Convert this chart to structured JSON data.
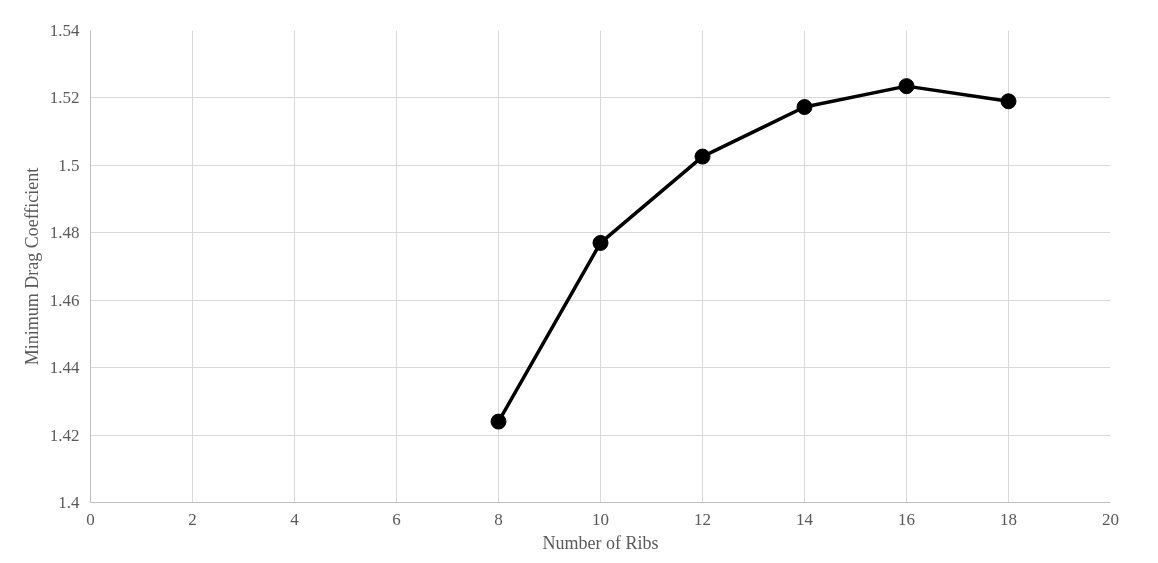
{
  "chart_data": {
    "type": "line",
    "xlabel": "Number of Ribs",
    "ylabel": "Minimum Drag Coefficient",
    "x": [
      8,
      10,
      12,
      14,
      16,
      18
    ],
    "series": [
      {
        "color": "#000000",
        "values": [
          1.424,
          1.477,
          1.5026,
          1.5173,
          1.5235,
          1.519
        ]
      }
    ],
    "xlim": [
      0,
      20
    ],
    "xticks": [
      0,
      2,
      4,
      6,
      8,
      10,
      12,
      14,
      16,
      18,
      20
    ],
    "ylim": [
      1.4,
      1.54
    ],
    "yticks": [
      1.4,
      1.42,
      1.44,
      1.46,
      1.48,
      1.5,
      1.52,
      1.54
    ],
    "grid": true,
    "marker": "circle",
    "line_style": "solid"
  }
}
